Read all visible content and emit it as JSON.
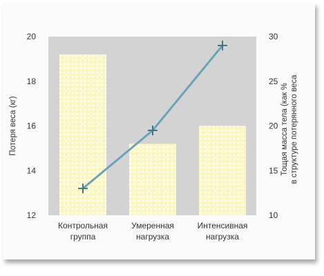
{
  "colors": {
    "background": "#fbfbfb",
    "plot_area": "#d3d3d3",
    "bar_fill": "#fbf7be",
    "bar_dots": "#ffffff",
    "line": "#6aa3b7",
    "marker": "#3f7485",
    "text": "#333333"
  },
  "chart_data": {
    "type": "bar",
    "title": "",
    "categories": [
      [
        "Контрольная",
        "группа"
      ],
      [
        "Умеренная",
        "нагрузка"
      ],
      [
        "Интенсивная",
        "нагрузка"
      ]
    ],
    "series": [
      {
        "type": "bar",
        "axis": "left",
        "values": [
          19.2,
          15.2,
          16.0
        ]
      },
      {
        "type": "line",
        "axis": "right",
        "marker": "plus",
        "values": [
          13.0,
          19.5,
          29.0
        ]
      }
    ],
    "ylabel": "Потеря веса (кг)",
    "ylim": [
      12,
      20
    ],
    "yticks": [
      12,
      14,
      16,
      18,
      20
    ],
    "y2label": [
      "Тощая масса тела (как %",
      "в структуре потерянного веса"
    ],
    "y2lim": [
      10,
      30
    ],
    "y2ticks": [
      10,
      15,
      20,
      25,
      30
    ],
    "grid": false,
    "legend": "none"
  }
}
